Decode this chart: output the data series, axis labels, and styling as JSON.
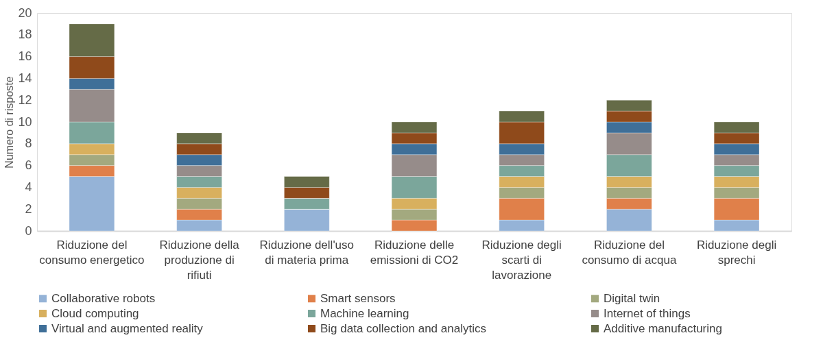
{
  "chart_data": {
    "type": "bar",
    "stacked": true,
    "ylabel": "Numero di risposte",
    "categories": [
      "Riduzione del consumo energetico",
      "Riduzione della produzione di rifiuti",
      "Riduzione dell'uso di materia prima",
      "Riduzione delle emissioni di CO2",
      "Riduzione degli scarti di lavorazione",
      "Riduzione del consumo di acqua",
      "Riduzione degli sprechi"
    ],
    "series": [
      {
        "name": "Collaborative robots",
        "color": "#95b3d7",
        "values": [
          5,
          1,
          2,
          0,
          1,
          2,
          1
        ]
      },
      {
        "name": "Smart sensors",
        "color": "#e0804a",
        "values": [
          1,
          1,
          0,
          1,
          2,
          1,
          2
        ]
      },
      {
        "name": "Digital twin",
        "color": "#a3a97f",
        "values": [
          1,
          1,
          0,
          1,
          1,
          1,
          1
        ]
      },
      {
        "name": "Cloud computing",
        "color": "#d8b05e",
        "values": [
          1,
          1,
          0,
          1,
          1,
          1,
          1
        ]
      },
      {
        "name": "Machine learning",
        "color": "#7ba69b",
        "values": [
          2,
          1,
          1,
          2,
          1,
          2,
          1
        ]
      },
      {
        "name": "Internet of things",
        "color": "#968c8a",
        "values": [
          3,
          1,
          0,
          2,
          1,
          2,
          1
        ]
      },
      {
        "name": "Virtual and augmented reality",
        "color": "#3f6f98",
        "values": [
          1,
          1,
          0,
          1,
          1,
          1,
          1
        ]
      },
      {
        "name": "Big data collection and analytics",
        "color": "#8f4a1b",
        "values": [
          2,
          1,
          1,
          1,
          2,
          1,
          1
        ]
      },
      {
        "name": "Additive manufacturing",
        "color": "#656b47",
        "values": [
          3,
          1,
          1,
          1,
          1,
          1,
          1
        ]
      }
    ],
    "ylim": [
      0,
      20
    ],
    "yticks": [
      0,
      2,
      4,
      6,
      8,
      10,
      12,
      14,
      16,
      18,
      20
    ],
    "grid": false,
    "legend": "bottom"
  }
}
